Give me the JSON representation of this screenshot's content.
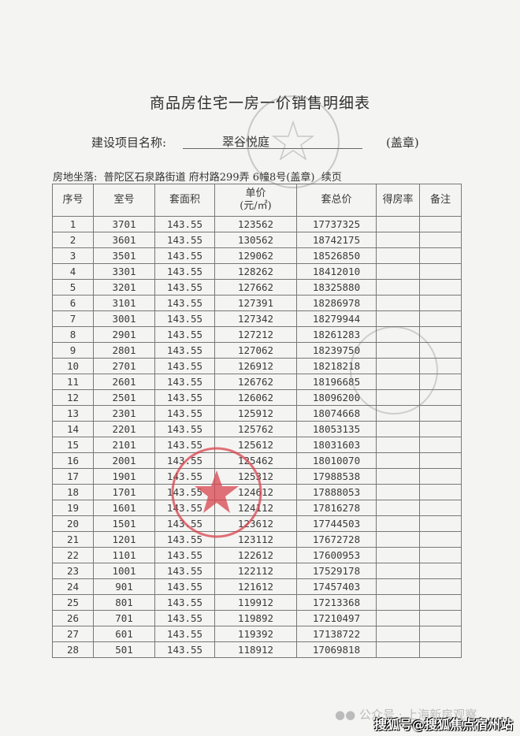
{
  "title": "商品房住宅一房一价销售明细表",
  "project": {
    "label": "建设项目名称:",
    "name": "翠谷悦庭",
    "seal_note": "(盖章)"
  },
  "address": {
    "label": "房地坐落:",
    "value": "普陀区石泉路街道 府村路299弄 6幢8号(盖章)",
    "continued": "续页"
  },
  "table": {
    "headers": [
      "序号",
      "室号",
      "套面积",
      "单价",
      "(元/㎡)",
      "套总价",
      "得房率",
      "备注"
    ],
    "rows": [
      [
        "1",
        "3701",
        "143.55",
        "123562",
        "17737325"
      ],
      [
        "2",
        "3601",
        "143.55",
        "130562",
        "18742175"
      ],
      [
        "3",
        "3501",
        "143.55",
        "129062",
        "18526850"
      ],
      [
        "4",
        "3301",
        "143.55",
        "128262",
        "18412010"
      ],
      [
        "5",
        "3201",
        "143.55",
        "127662",
        "18325880"
      ],
      [
        "6",
        "3101",
        "143.55",
        "127391",
        "18286978"
      ],
      [
        "7",
        "3001",
        "143.55",
        "127342",
        "18279944"
      ],
      [
        "8",
        "2901",
        "143.55",
        "127212",
        "18261283"
      ],
      [
        "9",
        "2801",
        "143.55",
        "127062",
        "18239750"
      ],
      [
        "10",
        "2701",
        "143.55",
        "126912",
        "18218218"
      ],
      [
        "11",
        "2601",
        "143.55",
        "126762",
        "18196685"
      ],
      [
        "12",
        "2501",
        "143.55",
        "126062",
        "18096200"
      ],
      [
        "13",
        "2301",
        "143.55",
        "125912",
        "18074668"
      ],
      [
        "14",
        "2201",
        "143.55",
        "125762",
        "18053135"
      ],
      [
        "15",
        "2101",
        "143.55",
        "125612",
        "18031603"
      ],
      [
        "16",
        "2001",
        "143.55",
        "125462",
        "18010070"
      ],
      [
        "17",
        "1901",
        "143.55",
        "125312",
        "17988538"
      ],
      [
        "18",
        "1701",
        "143.55",
        "124612",
        "17888053"
      ],
      [
        "19",
        "1601",
        "143.55",
        "124112",
        "17816278"
      ],
      [
        "20",
        "1501",
        "143.55",
        "123612",
        "17744503"
      ],
      [
        "21",
        "1201",
        "143.55",
        "123112",
        "17672728"
      ],
      [
        "22",
        "1101",
        "143.55",
        "122612",
        "17600953"
      ],
      [
        "23",
        "1001",
        "143.55",
        "122112",
        "17529178"
      ],
      [
        "24",
        "901",
        "143.55",
        "121612",
        "17457403"
      ],
      [
        "25",
        "801",
        "143.55",
        "119912",
        "17213368"
      ],
      [
        "26",
        "701",
        "143.55",
        "119892",
        "17210497"
      ],
      [
        "27",
        "601",
        "143.55",
        "119392",
        "17138722"
      ],
      [
        "28",
        "501",
        "143.55",
        "118912",
        "17069818"
      ]
    ]
  },
  "watermarks": {
    "wechat": "公众号 · 上海新房观察",
    "sohu": "搜狐号@搜狐焦点宿州站"
  },
  "colors": {
    "stamp": "#d9444f",
    "paper": "#f4f4f2"
  }
}
